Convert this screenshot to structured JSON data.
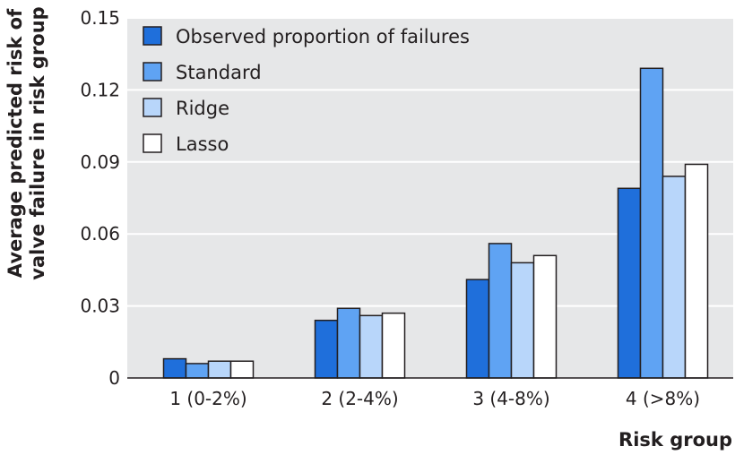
{
  "chart_data": {
    "type": "bar",
    "title": "",
    "xlabel": "Risk group",
    "ylabel_lines": [
      "Average predicted risk of",
      "valve failure in risk group"
    ],
    "categories": [
      "1 (0-2%)",
      "2 (2-4%)",
      "3 (4-8%)",
      "4 (>8%)"
    ],
    "yticks": [
      "0",
      "0.03",
      "0.06",
      "0.09",
      "0.12",
      "0.15"
    ],
    "ytick_values": [
      0,
      0.03,
      0.06,
      0.09,
      0.12,
      0.15
    ],
    "ylim": [
      0,
      0.15
    ],
    "grid": true,
    "legend_position": "top-left",
    "series": [
      {
        "name": "Observed proportion of failures",
        "color": "#1f6fdb",
        "values": [
          0.008,
          0.024,
          0.041,
          0.079
        ]
      },
      {
        "name": "Standard",
        "color": "#5fa3f3",
        "values": [
          0.006,
          0.029,
          0.056,
          0.129
        ]
      },
      {
        "name": "Ridge",
        "color": "#b8d6fa",
        "values": [
          0.007,
          0.026,
          0.048,
          0.084
        ]
      },
      {
        "name": "Lasso",
        "color": "#ffffff",
        "values": [
          0.007,
          0.027,
          0.051,
          0.089
        ]
      }
    ],
    "colors": {
      "plot_background": "#e6e7e8",
      "gridline": "#ffffff",
      "bar_stroke": "#231f20"
    }
  }
}
